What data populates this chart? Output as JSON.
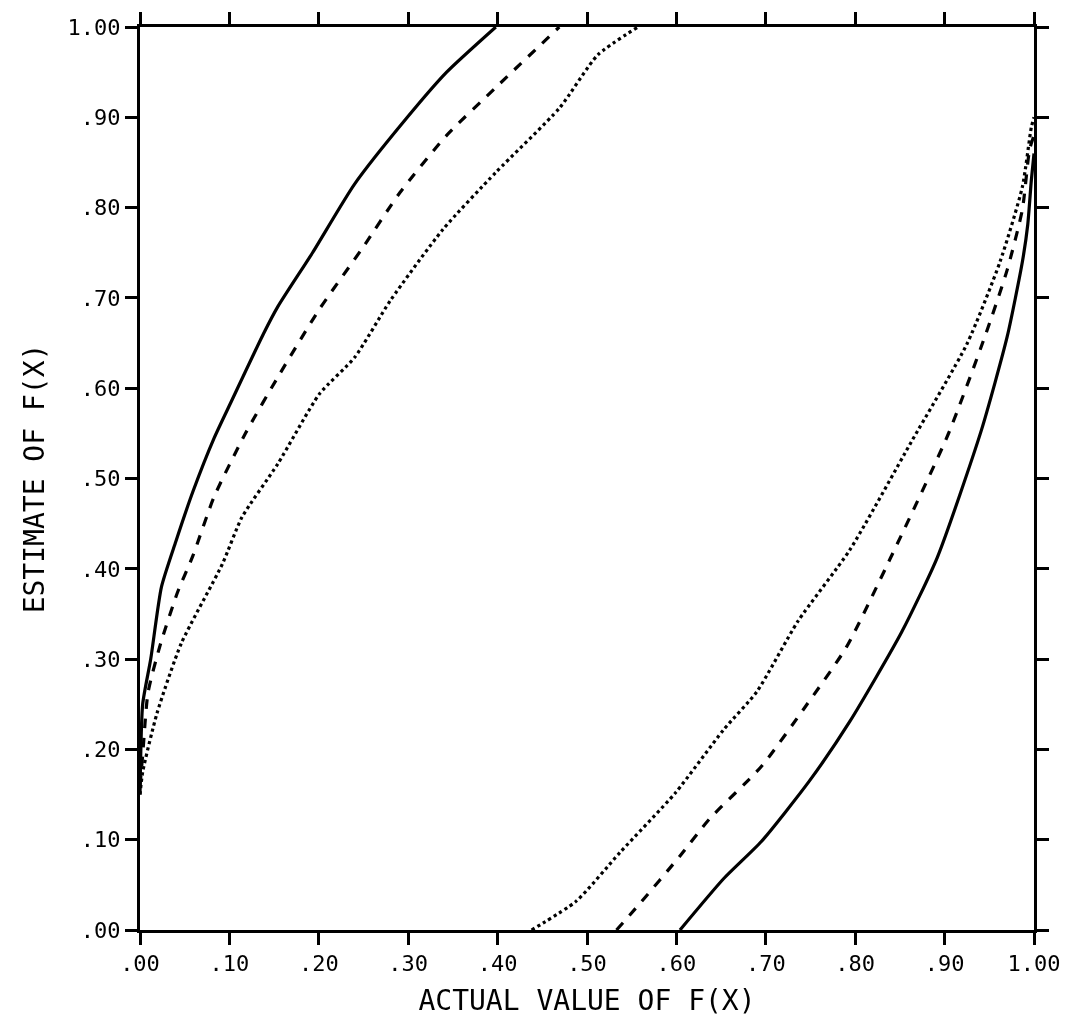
{
  "chart_data": {
    "type": "line",
    "xlabel": "ACTUAL VALUE OF F(X)",
    "ylabel": "ESTIMATE OF F(X)",
    "xlim": [
      0,
      1
    ],
    "ylim": [
      0,
      1
    ],
    "xticks": [
      {
        "value": 0,
        "label": ".00"
      },
      {
        "value": 0.1,
        "label": ".10"
      },
      {
        "value": 0.2,
        "label": ".20"
      },
      {
        "value": 0.3,
        "label": ".30"
      },
      {
        "value": 0.4,
        "label": ".40"
      },
      {
        "value": 0.5,
        "label": ".50"
      },
      {
        "value": 0.6,
        "label": ".60"
      },
      {
        "value": 0.7,
        "label": ".70"
      },
      {
        "value": 0.8,
        "label": ".80"
      },
      {
        "value": 0.9,
        "label": ".90"
      },
      {
        "value": 1,
        "label": "1.00"
      }
    ],
    "yticks": [
      {
        "value": 0,
        "label": ".00"
      },
      {
        "value": 0.1,
        "label": ".10"
      },
      {
        "value": 0.2,
        "label": ".20"
      },
      {
        "value": 0.3,
        "label": ".30"
      },
      {
        "value": 0.4,
        "label": ".40"
      },
      {
        "value": 0.5,
        "label": ".50"
      },
      {
        "value": 0.6,
        "label": ".60"
      },
      {
        "value": 0.7,
        "label": ".70"
      },
      {
        "value": 0.8,
        "label": ".80"
      },
      {
        "value": 0.9,
        "label": ".90"
      },
      {
        "value": 1,
        "label": "1.00"
      }
    ],
    "grid": false,
    "marker": "none",
    "series": [
      {
        "color": "#000000",
        "line_style": "solid",
        "x": [
          0,
          0.003,
          0.012,
          0.024,
          0.04,
          0.059,
          0.083,
          0.102,
          0.138,
          0.154,
          0.193,
          0.24,
          0.299,
          0.343,
          0.398
        ],
        "values": [
          0.15,
          0.25,
          0.3,
          0.38,
          0.43,
          0.485,
          0.545,
          0.585,
          0.66,
          0.69,
          0.75,
          0.826,
          0.9,
          0.95,
          1.0
        ]
      },
      {
        "color": "#000000",
        "line_style": "dashed",
        "x": [
          0,
          0.003,
          0.009,
          0.023,
          0.042,
          0.059,
          0.083,
          0.118,
          0.157,
          0.201,
          0.248,
          0.291,
          0.343,
          0.398,
          0.469
        ],
        "values": [
          0.16,
          0.194,
          0.263,
          0.317,
          0.374,
          0.414,
          0.48,
          0.55,
          0.617,
          0.688,
          0.754,
          0.817,
          0.88,
          0.933,
          1.0
        ]
      },
      {
        "color": "#000000",
        "line_style": "dotted",
        "x": [
          0,
          0.003,
          0.019,
          0.046,
          0.092,
          0.114,
          0.154,
          0.201,
          0.24,
          0.28,
          0.339,
          0.398,
          0.469,
          0.512,
          0.557
        ],
        "values": [
          0.15,
          0.175,
          0.24,
          0.317,
          0.405,
          0.457,
          0.516,
          0.594,
          0.634,
          0.697,
          0.776,
          0.839,
          0.91,
          0.969,
          1.0
        ]
      },
      {
        "color": "#000000",
        "line_style": "solid",
        "x": [
          0.604,
          0.653,
          0.695,
          0.748,
          0.794,
          0.852,
          0.892,
          0.941,
          0.97,
          0.987,
          0.993,
          0.997,
          1.0
        ],
        "values": [
          0,
          0.057,
          0.098,
          0.164,
          0.231,
          0.33,
          0.413,
          0.553,
          0.657,
          0.74,
          0.781,
          0.83,
          0.86
        ]
      },
      {
        "color": "#000000",
        "line_style": "dashed",
        "x": [
          0.533,
          0.558,
          0.604,
          0.637,
          0.695,
          0.744,
          0.79,
          0.84,
          0.904,
          0.945,
          0.97,
          0.987,
          0.995,
          1.0
        ],
        "values": [
          0,
          0.028,
          0.082,
          0.123,
          0.181,
          0.247,
          0.313,
          0.413,
          0.549,
          0.657,
          0.731,
          0.798,
          0.864,
          0.88
        ]
      },
      {
        "color": "#000000",
        "line_style": "dotted",
        "x": [
          0.438,
          0.488,
          0.537,
          0.599,
          0.653,
          0.69,
          0.736,
          0.794,
          0.863,
          0.925,
          0.962,
          0.987,
          0.997,
          1.0
        ],
        "values": [
          0,
          0.032,
          0.086,
          0.152,
          0.222,
          0.264,
          0.342,
          0.421,
          0.541,
          0.649,
          0.74,
          0.823,
          0.889,
          0.9
        ]
      }
    ]
  }
}
